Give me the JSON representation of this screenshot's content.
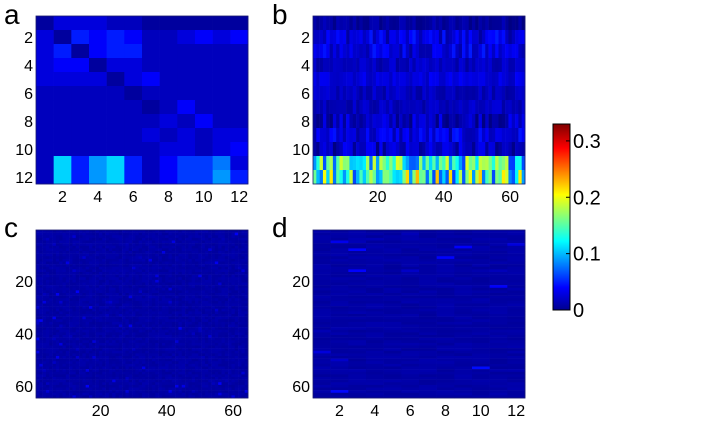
{
  "chart_data": [
    {
      "type": "heatmap",
      "panel": "a",
      "rows": 12,
      "cols": 12,
      "x_ticks": [
        "2",
        "4",
        "6",
        "8",
        "10",
        "12"
      ],
      "x_tick_values": [
        2,
        4,
        6,
        8,
        10,
        12
      ],
      "y_ticks": [
        "2",
        "4",
        "6",
        "8",
        "10",
        "12"
      ],
      "y_tick_values": [
        2,
        4,
        6,
        8,
        10,
        12
      ],
      "values": [
        [
          0.01,
          0.03,
          0.03,
          0.03,
          0.02,
          0.02,
          0.01,
          0.01,
          0.01,
          0.01,
          0.01,
          0.01
        ],
        [
          0.03,
          0.01,
          0.05,
          0.04,
          0.05,
          0.04,
          0.02,
          0.02,
          0.03,
          0.04,
          0.03,
          0.04
        ],
        [
          0.03,
          0.05,
          0.01,
          0.04,
          0.05,
          0.05,
          0.02,
          0.02,
          0.02,
          0.02,
          0.02,
          0.02
        ],
        [
          0.03,
          0.04,
          0.04,
          0.01,
          0.03,
          0.03,
          0.02,
          0.02,
          0.02,
          0.02,
          0.02,
          0.02
        ],
        [
          0.03,
          0.03,
          0.03,
          0.03,
          0.01,
          0.03,
          0.04,
          0.02,
          0.02,
          0.02,
          0.02,
          0.02
        ],
        [
          0.02,
          0.02,
          0.02,
          0.02,
          0.02,
          0.01,
          0.02,
          0.02,
          0.02,
          0.02,
          0.02,
          0.02
        ],
        [
          0.02,
          0.02,
          0.02,
          0.02,
          0.02,
          0.02,
          0.01,
          0.02,
          0.04,
          0.02,
          0.02,
          0.02
        ],
        [
          0.02,
          0.02,
          0.02,
          0.02,
          0.02,
          0.02,
          0.02,
          0.03,
          0.02,
          0.04,
          0.02,
          0.02
        ],
        [
          0.02,
          0.02,
          0.02,
          0.02,
          0.02,
          0.02,
          0.03,
          0.02,
          0.03,
          0.02,
          0.03,
          0.03
        ],
        [
          0.02,
          0.02,
          0.02,
          0.02,
          0.02,
          0.02,
          0.02,
          0.03,
          0.03,
          0.02,
          0.03,
          0.04
        ],
        [
          0.02,
          0.11,
          0.05,
          0.09,
          0.11,
          0.05,
          0.02,
          0.04,
          0.06,
          0.06,
          0.08,
          0.03
        ],
        [
          0.02,
          0.11,
          0.05,
          0.09,
          0.11,
          0.05,
          0.02,
          0.04,
          0.06,
          0.06,
          0.09,
          0.05
        ]
      ]
    },
    {
      "type": "heatmap",
      "panel": "b",
      "rows": 12,
      "cols": 64,
      "x_ticks": [
        "20",
        "40",
        "60"
      ],
      "x_tick_values": [
        20,
        40,
        60
      ],
      "y_ticks": [
        "2",
        "4",
        "6",
        "8",
        "10",
        "12"
      ],
      "y_tick_values": [
        2,
        4,
        6,
        8,
        10,
        12
      ],
      "row_levels": [
        0.01,
        0.03,
        0.03,
        0.02,
        0.03,
        0.02,
        0.02,
        0.02,
        0.03,
        0.02,
        0.13,
        0.15
      ],
      "row_variation": [
        0.01,
        0.02,
        0.02,
        0.01,
        0.01,
        0.01,
        0.01,
        0.02,
        0.02,
        0.02,
        0.07,
        0.09
      ]
    },
    {
      "type": "heatmap",
      "panel": "c",
      "rows": 64,
      "cols": 64,
      "x_ticks": [
        "20",
        "40",
        "60"
      ],
      "x_tick_values": [
        20,
        40,
        60
      ],
      "y_ticks": [
        "20",
        "40",
        "60"
      ],
      "y_tick_values": [
        20,
        40,
        60
      ],
      "base_level": 0.012,
      "sparse_max": 0.04
    },
    {
      "type": "heatmap",
      "panel": "d",
      "rows": 64,
      "cols": 12,
      "x_ticks": [
        "2",
        "4",
        "6",
        "8",
        "10",
        "12"
      ],
      "x_tick_values": [
        2,
        4,
        6,
        8,
        10,
        12
      ],
      "y_ticks": [
        "20",
        "40",
        "60"
      ],
      "y_tick_values": [
        20,
        40,
        60
      ],
      "base_level": 0.012,
      "sparse_max": 0.045
    }
  ],
  "panels": {
    "a": {
      "label": "a"
    },
    "b": {
      "label": "b"
    },
    "c": {
      "label": "c"
    },
    "d": {
      "label": "d"
    }
  },
  "colorbar": {
    "min": 0,
    "max": 0.33,
    "ticks": [
      "0",
      "0.1",
      "0.2",
      "0.3"
    ],
    "tick_values": [
      0,
      0.1,
      0.2,
      0.3
    ],
    "colormap": "jet"
  }
}
